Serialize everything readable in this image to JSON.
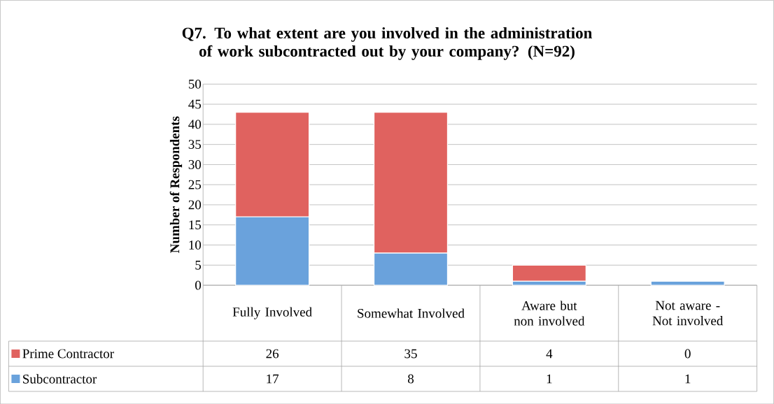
{
  "chart_data": {
    "type": "bar",
    "stacked": true,
    "title": "Q7. To what extent are you involved in the administration of work subcontracted out by your company? (N=92)",
    "ylabel": "Number of Respondents",
    "categories": [
      "Fully Involved",
      "Somewhat Involved",
      "Aware but non involved",
      "Not aware - Not involved"
    ],
    "series": [
      {
        "name": "Subcontractor",
        "color": "#6aa2dc",
        "values": [
          17,
          8,
          1,
          1
        ]
      },
      {
        "name": "Prime Contractor",
        "color": "#e0625f",
        "values": [
          26,
          35,
          4,
          0
        ]
      }
    ],
    "ylim": [
      0,
      50
    ],
    "yticks": [
      0,
      5,
      10,
      15,
      20,
      25,
      30,
      35,
      40,
      45,
      50
    ],
    "grid": "y",
    "legend": "bottom",
    "data_labels": true
  }
}
